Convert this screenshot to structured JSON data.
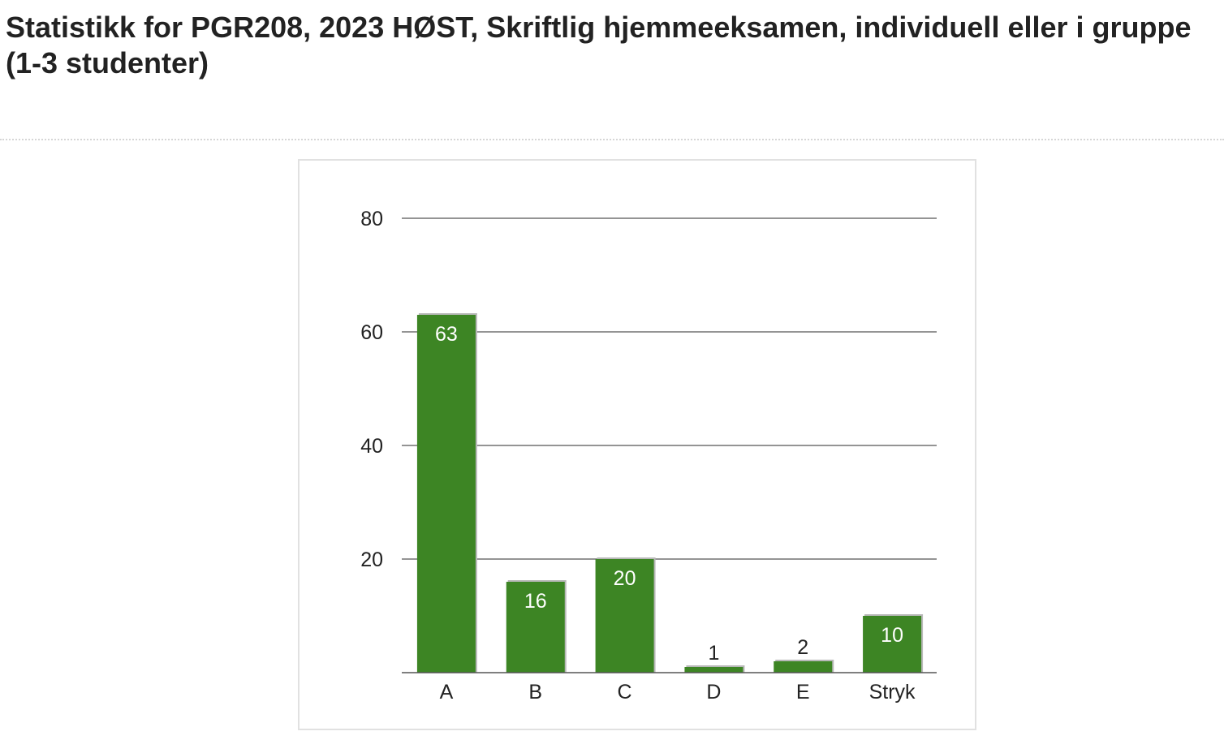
{
  "page": {
    "title": "Statistikk for PGR208, 2023 HØST, Skriftlig hjemmeeksamen, individuell eller i gruppe (1-3 studenter)"
  },
  "chart_data": {
    "type": "bar",
    "categories": [
      "A",
      "B",
      "C",
      "D",
      "E",
      "Stryk"
    ],
    "values": [
      63,
      16,
      20,
      1,
      2,
      10
    ],
    "ylim": [
      0,
      80
    ],
    "yticks": [
      "20",
      "40",
      "60",
      "80"
    ],
    "grid": true,
    "legend": "none",
    "colors": {
      "bar": "#3d8524",
      "bar_shadow": "#b8b8b8",
      "grid": "#555555",
      "label_inside": "#ffffff",
      "label_outside": "#222222"
    }
  }
}
